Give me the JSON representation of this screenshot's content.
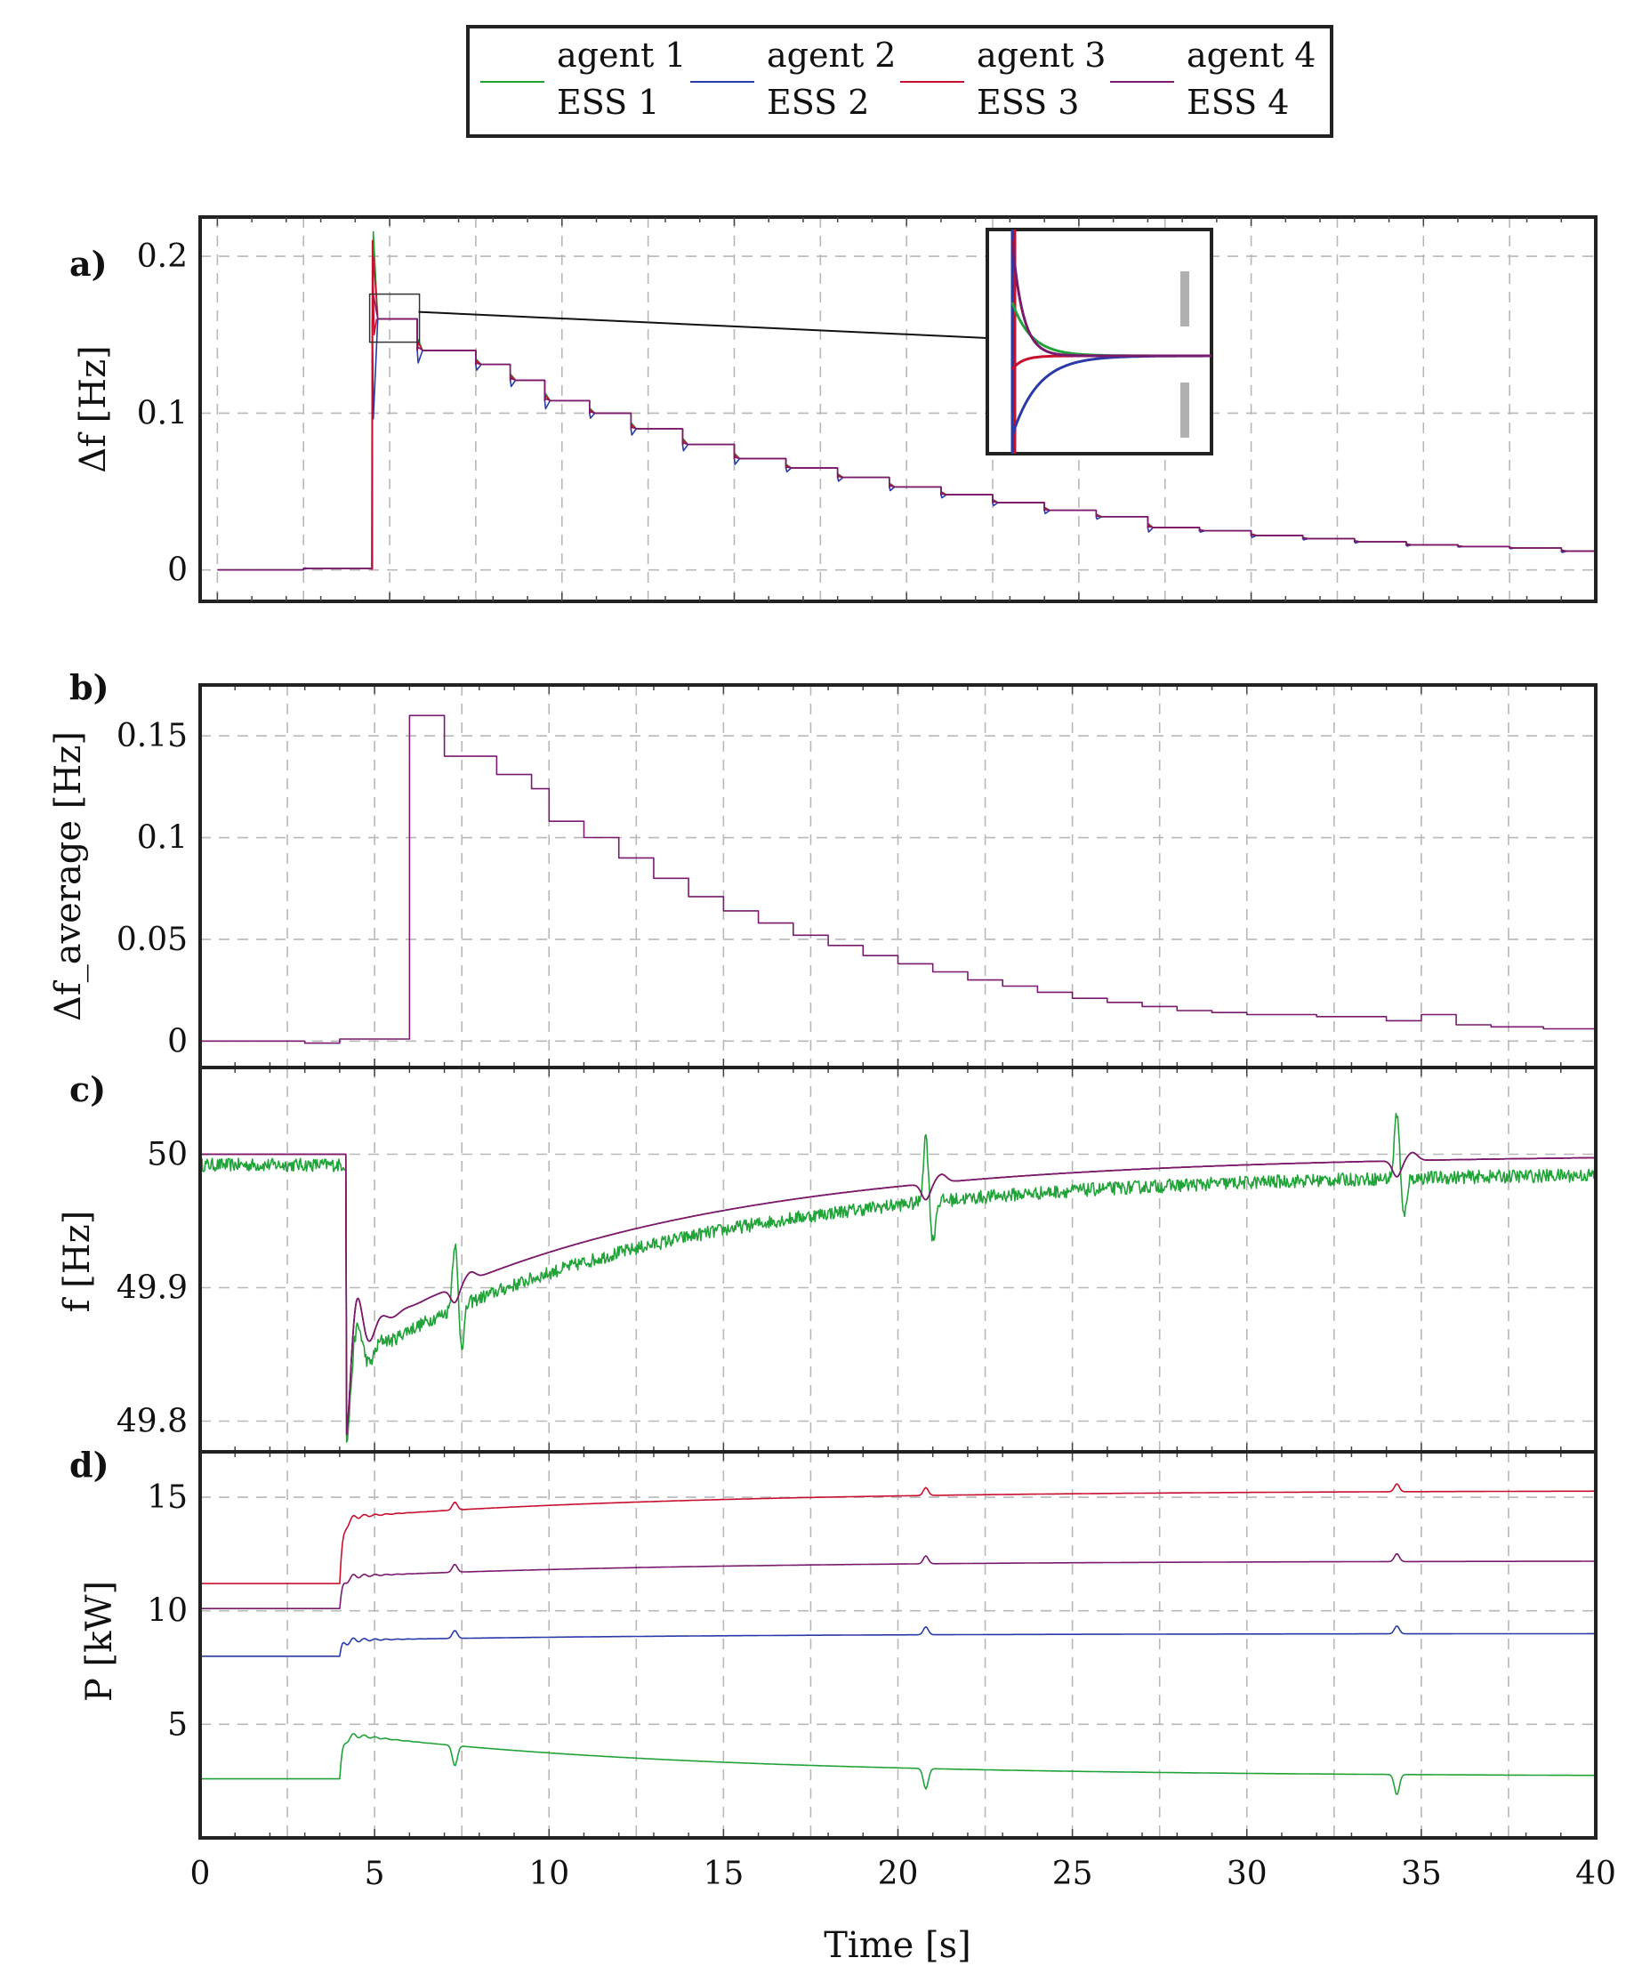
{
  "colors": {
    "agent_1": "#22a33a",
    "agent_2": "#2a3aa8",
    "agent_3": "#c8102e",
    "agent_4": "#7a1a6e",
    "grid": "#b8b8b8",
    "frame": "#222222"
  },
  "legend": {
    "entries": [
      {
        "agent": "agent 1",
        "ess": "ESS 1",
        "color_key": "agent_1"
      },
      {
        "agent": "agent 2",
        "ess": "ESS 2",
        "color_key": "agent_2"
      },
      {
        "agent": "agent 3",
        "ess": "ESS 3",
        "color_key": "agent_3"
      },
      {
        "agent": "agent 4",
        "ess": "ESS 4",
        "color_key": "agent_4"
      }
    ]
  },
  "chart_data": [
    {
      "panel": "a)",
      "type": "line",
      "ylabel": "Δf [Hz]",
      "xlim": [
        -0.5,
        40
      ],
      "ylim": [
        -0.02,
        0.225
      ],
      "xticks": [
        0,
        5,
        10,
        15,
        20,
        25,
        30,
        35,
        40
      ],
      "yticks": [
        0,
        0.1,
        0.2
      ],
      "ytick_labels": [
        "0",
        "0.1",
        "0.2"
      ],
      "step_times": [
        0,
        2.5,
        4.5,
        5.8,
        7.5,
        8.5,
        9.5,
        10.8,
        12,
        13.5,
        15,
        16.5,
        18,
        19.5,
        21,
        22.5,
        24,
        25.5,
        27,
        28.5,
        30,
        31.5,
        33,
        34.5,
        36,
        37.5,
        39
      ],
      "step_values": [
        0,
        0.001,
        0.16,
        0.14,
        0.131,
        0.121,
        0.108,
        0.1,
        0.09,
        0.08,
        0.071,
        0.065,
        0.059,
        0.053,
        0.048,
        0.043,
        0.038,
        0.034,
        0.027,
        0.025,
        0.022,
        0.02,
        0.018,
        0.016,
        0.015,
        0.014,
        0.012
      ],
      "series": [
        {
          "name": "agent 1"
        },
        {
          "name": "agent 2"
        },
        {
          "name": "agent 3"
        },
        {
          "name": "agent 4"
        }
      ],
      "spike": {
        "x": 4.5,
        "y": 0.21
      },
      "zoom_inset": {
        "source_x": 4.6,
        "source_y": 0.16
      }
    },
    {
      "panel": "b)",
      "type": "line",
      "ylabel": "Δf_average [Hz]",
      "xlim": [
        0,
        40
      ],
      "ylim": [
        -0.013,
        0.175
      ],
      "xticks": [
        0,
        5,
        10,
        15,
        20,
        25,
        30,
        35,
        40
      ],
      "yticks": [
        0,
        0.05,
        0.1,
        0.15
      ],
      "ytick_labels": [
        "0",
        "0.05",
        "0.1",
        "0.15"
      ],
      "step_times": [
        0,
        3,
        4,
        6,
        7,
        8.5,
        9.5,
        10,
        11,
        12,
        13,
        14,
        15,
        16,
        17,
        18,
        19,
        20,
        21,
        22,
        23,
        24,
        25,
        26,
        27,
        28,
        29,
        30,
        32,
        34,
        35,
        36,
        37,
        38.5
      ],
      "step_values": [
        0,
        -0.001,
        0.001,
        0.16,
        0.14,
        0.131,
        0.124,
        0.108,
        0.1,
        0.09,
        0.08,
        0.071,
        0.064,
        0.058,
        0.052,
        0.047,
        0.042,
        0.038,
        0.034,
        0.03,
        0.027,
        0.024,
        0.021,
        0.019,
        0.017,
        0.015,
        0.014,
        0.013,
        0.012,
        0.01,
        0.013,
        0.008,
        0.007,
        0.006
      ],
      "series": [
        {
          "name": "agent 4"
        }
      ]
    },
    {
      "panel": "c)",
      "type": "line",
      "ylabel": "f [Hz]",
      "xlim": [
        0,
        40
      ],
      "ylim": [
        49.777,
        50.065
      ],
      "xticks": [
        0,
        5,
        10,
        15,
        20,
        25,
        30,
        35,
        40
      ],
      "yticks": [
        49.8,
        49.9,
        50
      ],
      "ytick_labels": [
        "49.8",
        "49.9",
        "50"
      ],
      "series": [
        {
          "name": "agent 1",
          "initial": 50.0,
          "dip_time": 4.2,
          "min": 49.79,
          "settle": 49.85,
          "final": 49.995,
          "noisy": true,
          "spikes": [
            7.3,
            20.8,
            34.3
          ]
        },
        {
          "name": "agent 2",
          "initial": 50.0,
          "dip_time": 4.2,
          "min": 49.79,
          "settle": 49.86,
          "final": 50.0
        },
        {
          "name": "agent 3",
          "initial": 50.0,
          "dip_time": 4.2,
          "min": 49.79,
          "settle": 49.86,
          "final": 50.0
        },
        {
          "name": "agent 4",
          "initial": 50.0,
          "dip_time": 4.2,
          "min": 49.79,
          "settle": 49.86,
          "final": 50.0
        }
      ]
    },
    {
      "panel": "d)",
      "type": "line",
      "ylabel": "P [kW]",
      "xlabel": "Time [s]",
      "xlim": [
        0,
        40
      ],
      "ylim": [
        0,
        17
      ],
      "xticks": [
        0,
        5,
        10,
        15,
        20,
        25,
        30,
        35,
        40
      ],
      "xtick_labels": [
        "0",
        "5",
        "10",
        "15",
        "20",
        "25",
        "30",
        "35",
        "40"
      ],
      "yticks": [
        5,
        10,
        15
      ],
      "ytick_labels": [
        "5",
        "10",
        "15"
      ],
      "series": [
        {
          "name": "agent 1",
          "before": 2.6,
          "after": 4.6,
          "final": 2.7
        },
        {
          "name": "agent 2",
          "before": 8.0,
          "after": 8.7,
          "final": 9.0
        },
        {
          "name": "agent 3",
          "before": 11.2,
          "after": 14.1,
          "final": 15.3
        },
        {
          "name": "agent 4",
          "before": 10.1,
          "after": 11.5,
          "final": 12.2
        }
      ]
    }
  ]
}
